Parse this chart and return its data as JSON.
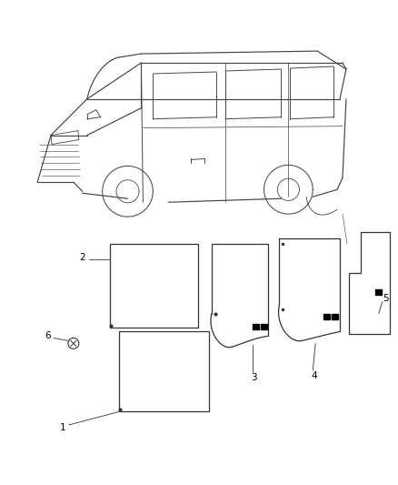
{
  "background_color": "#ffffff",
  "line_color": "#333333",
  "line_width": 0.9,
  "figsize": [
    4.38,
    5.33
  ],
  "dpi": 100,
  "van": {
    "color": "#444444",
    "lw": 0.85
  },
  "parts": {
    "lc": "#333333",
    "lw": 0.9
  },
  "labels": {
    "fontsize": 7.5,
    "color": "#000000"
  }
}
